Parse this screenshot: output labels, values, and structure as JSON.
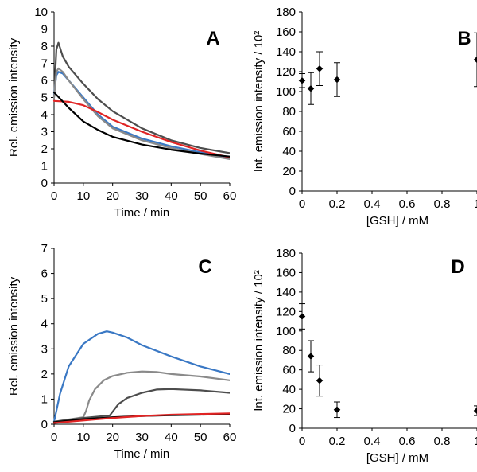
{
  "chart_data": [
    {
      "panel_label": "A",
      "type": "line",
      "xlabel": "Time / min",
      "ylabel": "Rel. emission intensity",
      "xlim": [
        0,
        60
      ],
      "ylim": [
        0,
        10
      ],
      "xticks": [
        0,
        10,
        20,
        30,
        40,
        50,
        60
      ],
      "yticks": [
        0,
        1,
        2,
        3,
        4,
        5,
        6,
        7,
        8,
        9,
        10
      ],
      "colors": {
        "dark_gray": "#4d4d4d",
        "blue": "#3a78c4",
        "gray": "#8a8a8a",
        "red": "#e02424",
        "black": "#000000"
      },
      "series": [
        {
          "color": "dark_gray",
          "x": [
            0,
            0.8,
            1.5,
            3,
            5,
            10,
            15,
            20,
            30,
            40,
            50,
            60
          ],
          "y": [
            5.0,
            7.8,
            8.2,
            7.4,
            6.8,
            5.8,
            4.9,
            4.2,
            3.2,
            2.5,
            2.05,
            1.75
          ]
        },
        {
          "color": "blue",
          "x": [
            0,
            0.8,
            1.5,
            3,
            5,
            10,
            15,
            20,
            30,
            40,
            50,
            60
          ],
          "y": [
            5.2,
            6.3,
            6.5,
            6.4,
            6.0,
            5.0,
            4.0,
            3.3,
            2.6,
            2.15,
            1.8,
            1.5
          ]
        },
        {
          "color": "gray",
          "x": [
            0,
            0.8,
            1.5,
            3,
            5,
            10,
            15,
            20,
            30,
            40,
            50,
            60
          ],
          "y": [
            5.0,
            6.5,
            6.7,
            6.5,
            6.0,
            4.9,
            3.9,
            3.2,
            2.5,
            2.05,
            1.7,
            1.4
          ]
        },
        {
          "color": "red",
          "x": [
            0,
            5,
            10,
            15,
            20,
            30,
            40,
            50,
            60
          ],
          "y": [
            4.8,
            4.75,
            4.55,
            4.15,
            3.7,
            3.0,
            2.4,
            1.9,
            1.5
          ]
        },
        {
          "color": "black",
          "x": [
            0,
            5,
            10,
            15,
            20,
            30,
            40,
            50,
            60
          ],
          "y": [
            5.3,
            4.4,
            3.6,
            3.1,
            2.7,
            2.25,
            1.95,
            1.72,
            1.55
          ]
        }
      ]
    },
    {
      "panel_label": "B",
      "type": "scatter",
      "xlabel": "[GSH] / mM",
      "ylabel": "Int. emission intensity / 10²",
      "xlim": [
        0,
        1
      ],
      "ylim": [
        0,
        180
      ],
      "xticks": [
        0,
        0.2,
        0.4,
        0.6,
        0.8,
        1
      ],
      "xtick_labels": [
        "0",
        "0.2",
        "0.4",
        "0.6",
        "0.8",
        "1"
      ],
      "yticks": [
        0,
        20,
        40,
        60,
        80,
        100,
        120,
        140,
        160,
        180
      ],
      "points": [
        {
          "x": 0,
          "y": 111,
          "err": 7
        },
        {
          "x": 0.05,
          "y": 103,
          "err": 16
        },
        {
          "x": 0.1,
          "y": 123,
          "err": 17
        },
        {
          "x": 0.2,
          "y": 112,
          "err": 17
        },
        {
          "x": 1,
          "y": 132,
          "err": 27
        }
      ]
    },
    {
      "panel_label": "C",
      "type": "line",
      "xlabel": "Time / min",
      "ylabel": "Rel. emission intensity",
      "xlim": [
        0,
        60
      ],
      "ylim": [
        0,
        7
      ],
      "xticks": [
        0,
        10,
        20,
        30,
        40,
        50,
        60
      ],
      "yticks": [
        0,
        1,
        2,
        3,
        4,
        5,
        6,
        7
      ],
      "colors": {
        "dark_gray": "#4d4d4d",
        "blue": "#3a78c4",
        "gray": "#8a8a8a",
        "red": "#e02424",
        "black": "#000000"
      },
      "series": [
        {
          "color": "blue",
          "x": [
            0,
            2,
            5,
            10,
            15,
            18,
            20,
            25,
            30,
            40,
            50,
            60
          ],
          "y": [
            0.1,
            1.2,
            2.3,
            3.2,
            3.6,
            3.7,
            3.65,
            3.45,
            3.15,
            2.7,
            2.3,
            2.0
          ]
        },
        {
          "color": "gray",
          "x": [
            0,
            10,
            11,
            12,
            14,
            17,
            20,
            25,
            30,
            35,
            40,
            50,
            60
          ],
          "y": [
            0.1,
            0.28,
            0.55,
            0.95,
            1.4,
            1.75,
            1.92,
            2.05,
            2.1,
            2.08,
            2.0,
            1.9,
            1.75
          ]
        },
        {
          "color": "dark_gray",
          "x": [
            0,
            10,
            19,
            20,
            22,
            25,
            30,
            35,
            40,
            50,
            60
          ],
          "y": [
            0.1,
            0.25,
            0.35,
            0.5,
            0.8,
            1.05,
            1.25,
            1.38,
            1.4,
            1.35,
            1.25
          ]
        },
        {
          "color": "black",
          "x": [
            0,
            10,
            20,
            30,
            40,
            50,
            60
          ],
          "y": [
            0.08,
            0.2,
            0.28,
            0.33,
            0.36,
            0.38,
            0.4
          ]
        },
        {
          "color": "red",
          "x": [
            0,
            10,
            20,
            30,
            40,
            50,
            60
          ],
          "y": [
            0.05,
            0.15,
            0.25,
            0.33,
            0.38,
            0.41,
            0.43
          ]
        }
      ]
    },
    {
      "panel_label": "D",
      "type": "scatter",
      "xlabel": "[GSH] / mM",
      "ylabel": "Int. emission intensity / 10²",
      "xlim": [
        0,
        1
      ],
      "ylim": [
        0,
        180
      ],
      "xticks": [
        0,
        0.2,
        0.4,
        0.6,
        0.8,
        1
      ],
      "xtick_labels": [
        "0",
        "0.2",
        "0.4",
        "0.6",
        "0.8",
        "1"
      ],
      "yticks": [
        0,
        20,
        40,
        60,
        80,
        100,
        120,
        140,
        160,
        180
      ],
      "points": [
        {
          "x": 0,
          "y": 115,
          "err": 13
        },
        {
          "x": 0.05,
          "y": 74,
          "err": 16
        },
        {
          "x": 0.1,
          "y": 49,
          "err": 16
        },
        {
          "x": 0.2,
          "y": 19,
          "err": 8
        },
        {
          "x": 1,
          "y": 18,
          "err": 5
        }
      ]
    }
  ]
}
